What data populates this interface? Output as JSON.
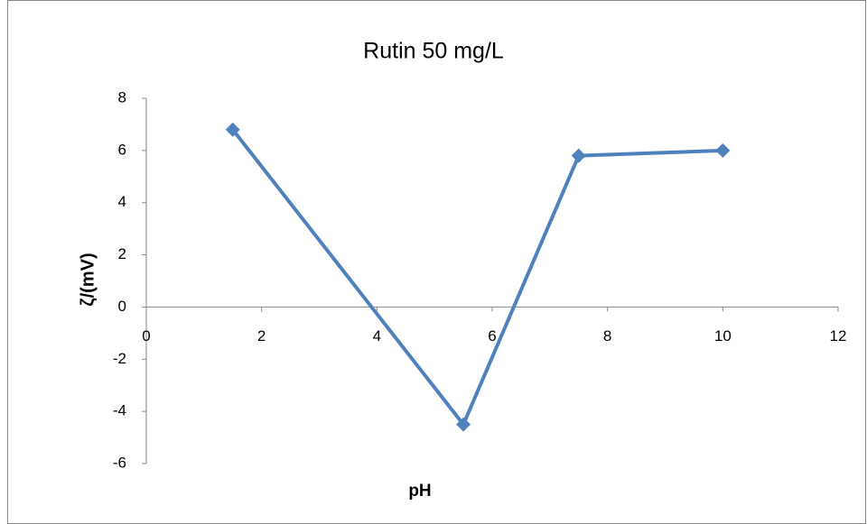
{
  "chart_data": {
    "type": "line",
    "title": "Rutin 50 mg/L",
    "x_label": "pH",
    "y_label": "ζ/(mV)",
    "x": [
      1.5,
      5.5,
      7.5,
      10
    ],
    "series": [
      {
        "name": "Rutin 50 mg/L",
        "color": "#4f81bd",
        "values": [
          6.8,
          -4.5,
          5.8,
          6.0
        ]
      }
    ],
    "xlim": [
      0,
      12
    ],
    "xticks": [
      0,
      2,
      4,
      6,
      8,
      10,
      12
    ],
    "ylim": [
      -6,
      8
    ],
    "yticks": [
      -6,
      -4,
      -2,
      0,
      2,
      4,
      6,
      8
    ],
    "marker": "diamond"
  }
}
